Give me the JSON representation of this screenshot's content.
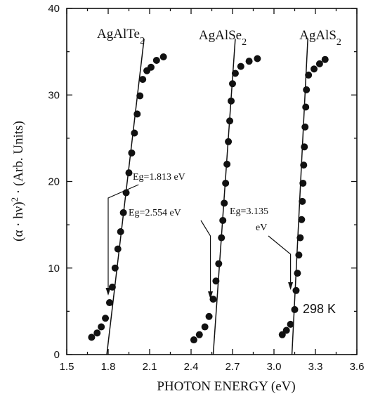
{
  "chart_data": {
    "type": "scatter",
    "xlabel": "PHOTON ENERGY (eV)",
    "ylabel_parts": [
      "(α · hν)",
      "2",
      " · (Arb. Units)"
    ],
    "xlim": [
      1.5,
      3.6
    ],
    "ylim": [
      0,
      40
    ],
    "x_ticks": [
      "1.5",
      "1.8",
      "2.1",
      "2.4",
      "2.7",
      "3.0",
      "3.3",
      "3.6"
    ],
    "y_ticks": [
      "0",
      "10",
      "20",
      "30",
      "40"
    ],
    "temperature_label": "298 K",
    "series": [
      {
        "name_base": "AgAlTe",
        "name_sub": "2",
        "points": [
          [
            1.68,
            2.0
          ],
          [
            1.72,
            2.5
          ],
          [
            1.75,
            3.2
          ],
          [
            1.78,
            4.2
          ],
          [
            1.81,
            6.0
          ],
          [
            1.83,
            7.8
          ],
          [
            1.85,
            10.0
          ],
          [
            1.87,
            12.2
          ],
          [
            1.89,
            14.2
          ],
          [
            1.91,
            16.4
          ],
          [
            1.93,
            18.7
          ],
          [
            1.95,
            21.0
          ],
          [
            1.97,
            23.3
          ],
          [
            1.99,
            25.6
          ],
          [
            2.01,
            27.8
          ],
          [
            2.03,
            29.9
          ],
          [
            2.05,
            31.8
          ],
          [
            2.08,
            32.8
          ],
          [
            2.11,
            33.2
          ],
          [
            2.15,
            34.0
          ],
          [
            2.2,
            34.4
          ]
        ],
        "fit_line": {
          "x": [
            1.79,
            2.06
          ],
          "y": [
            0,
            36.5
          ]
        },
        "eg_label": "Eg=1.813 eV",
        "eg_value": 1.813
      },
      {
        "name_base": "AgAlSe",
        "name_sub": "2",
        "points": [
          [
            2.42,
            1.7
          ],
          [
            2.46,
            2.3
          ],
          [
            2.5,
            3.2
          ],
          [
            2.53,
            4.4
          ],
          [
            2.56,
            6.4
          ],
          [
            2.58,
            8.5
          ],
          [
            2.6,
            10.5
          ],
          [
            2.62,
            13.5
          ],
          [
            2.63,
            15.5
          ],
          [
            2.64,
            17.5
          ],
          [
            2.65,
            19.8
          ],
          [
            2.66,
            22.0
          ],
          [
            2.67,
            24.6
          ],
          [
            2.68,
            27.0
          ],
          [
            2.69,
            29.3
          ],
          [
            2.7,
            31.3
          ],
          [
            2.72,
            32.5
          ],
          [
            2.76,
            33.3
          ],
          [
            2.82,
            33.9
          ],
          [
            2.88,
            34.2
          ]
        ],
        "fit_line": {
          "x": [
            2.56,
            2.72
          ],
          "y": [
            0,
            36.5
          ]
        },
        "eg_label": "Eg=2.554 eV",
        "eg_value": 2.554
      },
      {
        "name_base": "AgAlS",
        "name_sub": "2",
        "points": [
          [
            3.06,
            2.3
          ],
          [
            3.09,
            2.8
          ],
          [
            3.12,
            3.5
          ],
          [
            3.15,
            5.2
          ],
          [
            3.16,
            7.4
          ],
          [
            3.17,
            9.4
          ],
          [
            3.18,
            11.5
          ],
          [
            3.19,
            13.5
          ],
          [
            3.2,
            15.6
          ],
          [
            3.205,
            17.7
          ],
          [
            3.21,
            19.8
          ],
          [
            3.215,
            21.9
          ],
          [
            3.22,
            24.0
          ],
          [
            3.225,
            26.3
          ],
          [
            3.23,
            28.6
          ],
          [
            3.235,
            30.6
          ],
          [
            3.25,
            32.3
          ],
          [
            3.29,
            33.0
          ],
          [
            3.33,
            33.6
          ],
          [
            3.37,
            34.1
          ]
        ],
        "fit_line": {
          "x": [
            3.13,
            3.245
          ],
          "y": [
            0,
            36.5
          ]
        },
        "eg_label_lines": [
          "Eg=3.135",
          "eV"
        ],
        "eg_value": 3.135
      }
    ],
    "grid": false
  }
}
